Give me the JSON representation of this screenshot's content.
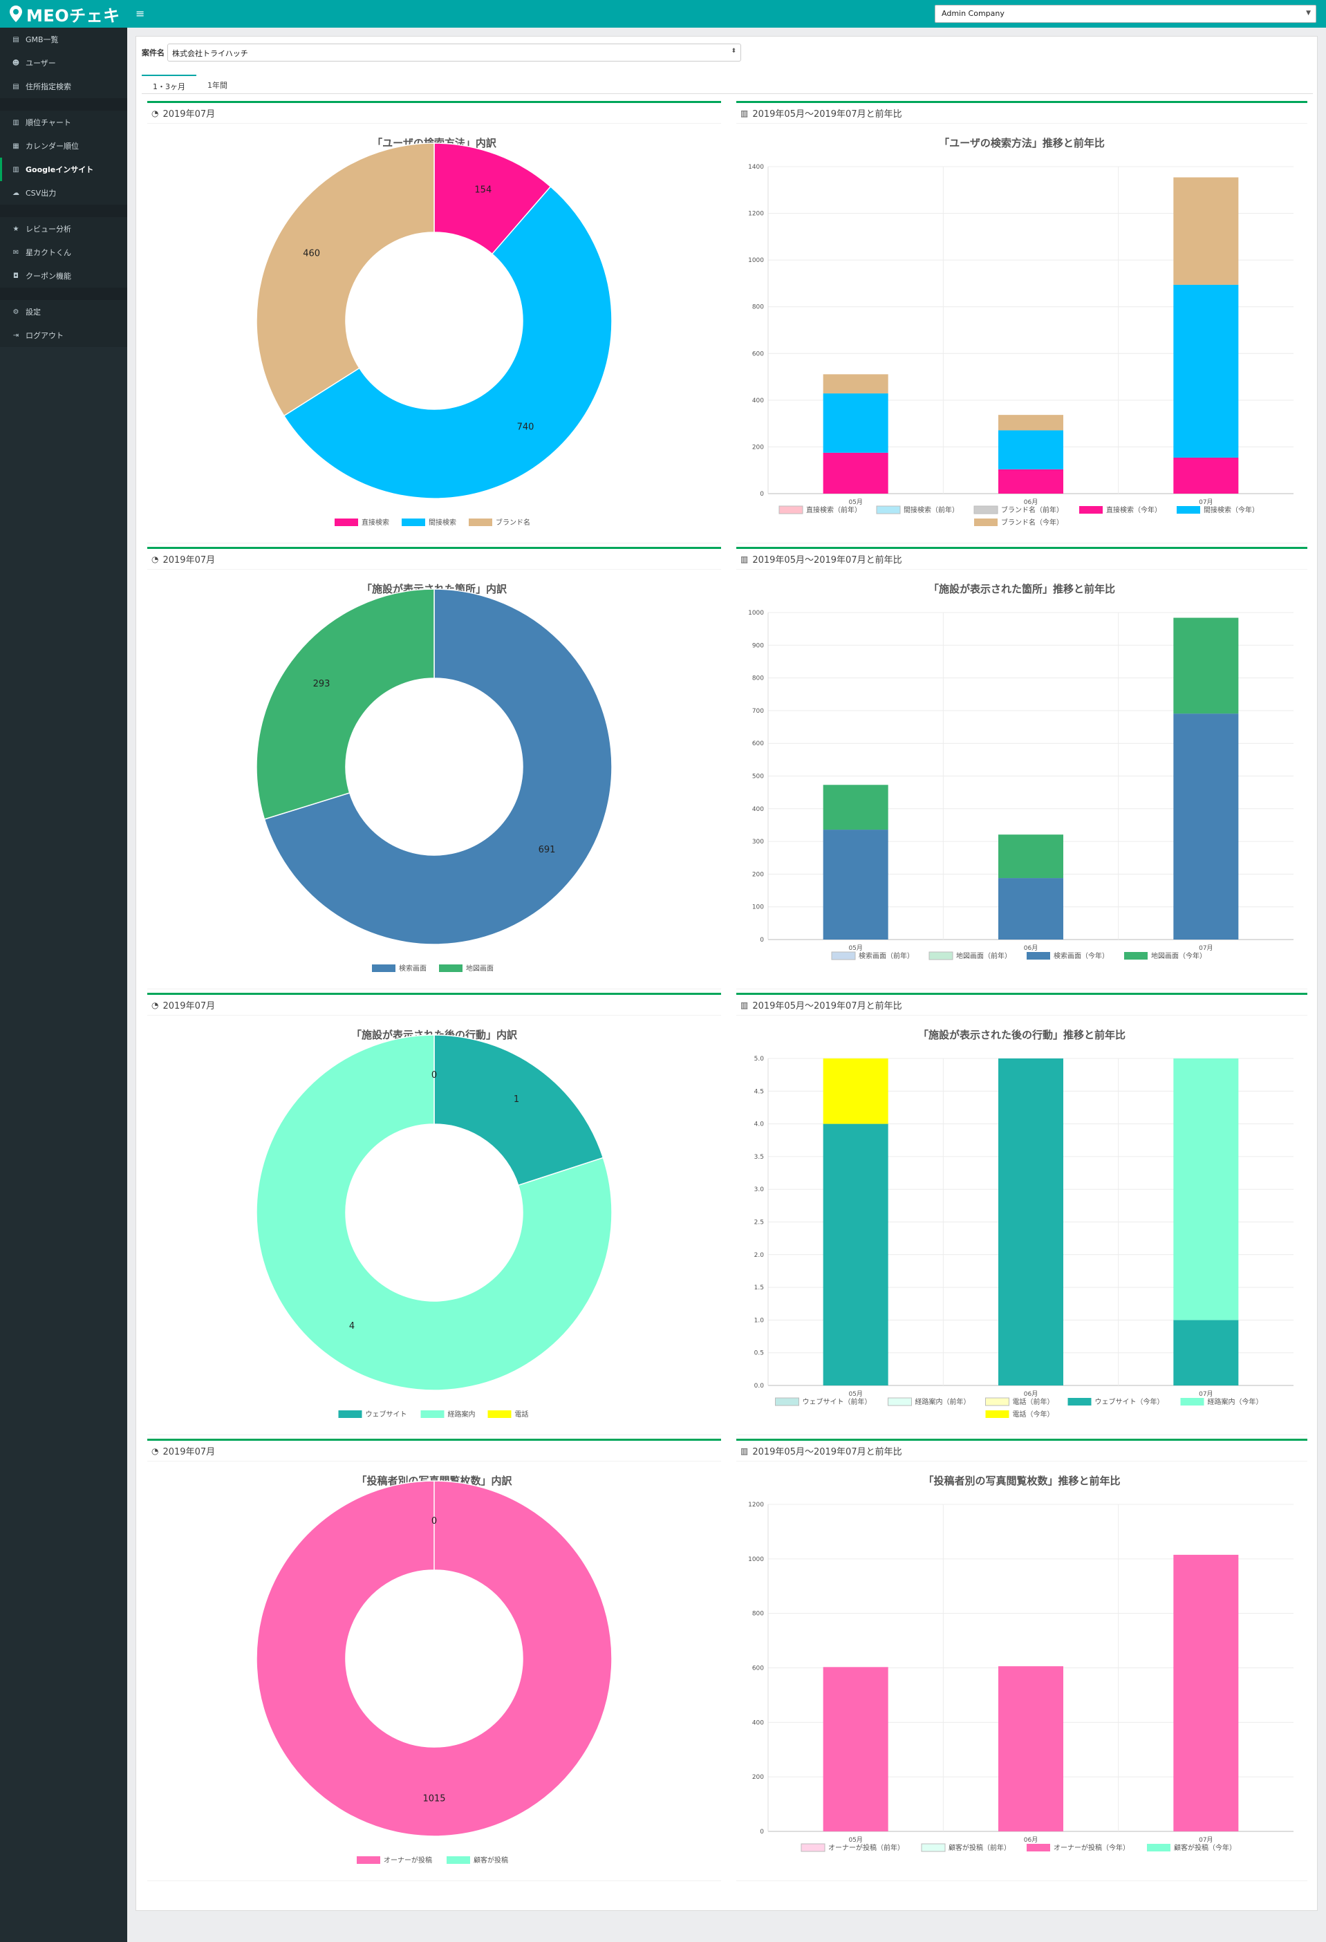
{
  "app": {
    "brand": "MEOチェキ"
  },
  "header": {
    "company_select": "Admin Company"
  },
  "sidebar": {
    "groups": [
      [
        {
          "icon": "list-icon",
          "label": "GMB一覧"
        },
        {
          "icon": "users-icon",
          "label": "ユーザー"
        },
        {
          "icon": "list-icon",
          "label": "住所指定検索"
        }
      ],
      [
        {
          "icon": "chart-icon",
          "label": "順位チャート"
        },
        {
          "icon": "calendar-icon",
          "label": "カレンダー順位"
        },
        {
          "icon": "chart-icon",
          "label": "Googleインサイト",
          "active": true
        },
        {
          "icon": "cloud-icon",
          "label": "CSV出力"
        }
      ],
      [
        {
          "icon": "star-icon",
          "label": "レビュー分析"
        },
        {
          "icon": "mail-icon",
          "label": "星カクトくん"
        },
        {
          "icon": "gift-icon",
          "label": "クーポン機能"
        }
      ],
      [
        {
          "icon": "gear-icon",
          "label": "設定"
        },
        {
          "icon": "logout-icon",
          "label": "ログアウト"
        }
      ]
    ]
  },
  "filters": {
    "case_label": "案件名",
    "case_value": "株式会社トライハッチ"
  },
  "tabs": [
    "1・3ヶ月",
    "1年間"
  ],
  "sections": [
    {
      "left_head": "2019年07月",
      "right_head": "2019年05月〜2019年07月と前年比",
      "donut_title": "「ユーザの検索方法」内訳",
      "bar_title": "「ユーザの検索方法」推移と前年比"
    },
    {
      "left_head": "2019年07月",
      "right_head": "2019年05月〜2019年07月と前年比",
      "donut_title": "「施設が表示された箇所」内訳",
      "bar_title": "「施設が表示された箇所」推移と前年比"
    },
    {
      "left_head": "2019年07月",
      "right_head": "2019年05月〜2019年07月と前年比",
      "donut_title": "「施設が表示された後の行動」内訳",
      "bar_title": "「施設が表示された後の行動」推移と前年比"
    },
    {
      "left_head": "2019年07月",
      "right_head": "2019年05月〜2019年07月と前年比",
      "donut_title": "「投稿者別の写真閲覧枚数」内訳",
      "bar_title": "「投稿者別の写真閲覧枚数」推移と前年比"
    }
  ],
  "colors": {
    "pink": "#ff1493",
    "sky": "#00bfff",
    "tan": "#deb887",
    "steel": "#4682b4",
    "green": "#3cb371",
    "teal": "#20b2aa",
    "aqua": "#7fffd4",
    "yellow": "#ffff00",
    "hotpink": "#ff69b4"
  },
  "chart_data": [
    {
      "type": "pie",
      "title": "「ユーザの検索方法」内訳",
      "labels": [
        "直接検索",
        "間接検索",
        "ブランド名"
      ],
      "values": [
        154,
        740,
        460
      ],
      "colors": [
        "#ff1493",
        "#00bfff",
        "#deb887"
      ]
    },
    {
      "type": "bar",
      "stacked": true,
      "title": "「ユーザの検索方法」推移と前年比",
      "categories": [
        "05月",
        "06月",
        "07月"
      ],
      "ylim": [
        0,
        1400
      ],
      "ytick_step": 200,
      "ytick_decimals": 0,
      "series": [
        {
          "name": "直接検索（前年）",
          "values": [
            0,
            0,
            0
          ],
          "color": "#ffc0cb",
          "hollow": true
        },
        {
          "name": "間接検索（前年）",
          "values": [
            0,
            0,
            0
          ],
          "color": "#b0e8f8",
          "hollow": true
        },
        {
          "name": "ブランド名（前年）",
          "values": [
            0,
            0,
            0
          ],
          "color": "#cccccc",
          "hollow": true
        },
        {
          "name": "直接検索（今年）",
          "values": [
            175,
            104,
            154
          ],
          "color": "#ff1493"
        },
        {
          "name": "間接検索（今年）",
          "values": [
            254,
            167,
            740
          ],
          "color": "#00bfff"
        },
        {
          "name": "ブランド名（今年）",
          "values": [
            82,
            66,
            460
          ],
          "color": "#deb887"
        }
      ]
    },
    {
      "type": "pie",
      "title": "「施設が表示された箇所」内訳",
      "labels": [
        "検索画面",
        "地図画面"
      ],
      "values": [
        691,
        293
      ],
      "colors": [
        "#4682b4",
        "#3cb371"
      ]
    },
    {
      "type": "bar",
      "stacked": true,
      "title": "「施設が表示された箇所」推移と前年比",
      "categories": [
        "05月",
        "06月",
        "07月"
      ],
      "ylim": [
        0,
        1000
      ],
      "ytick_step": 100,
      "ytick_decimals": 0,
      "series": [
        {
          "name": "検索画面（前年）",
          "values": [
            0,
            0,
            0
          ],
          "color": "#c6d9ee",
          "hollow": true
        },
        {
          "name": "地図画面（前年）",
          "values": [
            0,
            0,
            0
          ],
          "color": "#c4ebd5",
          "hollow": true
        },
        {
          "name": "検索画面（今年）",
          "values": [
            336,
            188,
            691
          ],
          "color": "#4682b4"
        },
        {
          "name": "地図画面（今年）",
          "values": [
            137,
            133,
            293
          ],
          "color": "#3cb371"
        }
      ]
    },
    {
      "type": "pie",
      "title": "「施設が表示された後の行動」内訳",
      "labels": [
        "ウェブサイト",
        "経路案内",
        "電話"
      ],
      "values": [
        1,
        4,
        0
      ],
      "colors": [
        "#20b2aa",
        "#7fffd4",
        "#ffff00"
      ]
    },
    {
      "type": "bar",
      "stacked": true,
      "title": "「施設が表示された後の行動」推移と前年比",
      "categories": [
        "05月",
        "06月",
        "07月"
      ],
      "ylim": [
        0,
        5
      ],
      "ytick_step": 0.5,
      "ytick_decimals": 1,
      "series": [
        {
          "name": "ウェブサイト（前年）",
          "values": [
            0,
            0,
            0
          ],
          "color": "#bfe9e6",
          "hollow": true
        },
        {
          "name": "経路案内（前年）",
          "values": [
            0,
            0,
            0
          ],
          "color": "#dffff4",
          "hollow": true
        },
        {
          "name": "電話（前年）",
          "values": [
            0,
            0,
            0
          ],
          "color": "#ffffc0",
          "hollow": true
        },
        {
          "name": "ウェブサイト（今年）",
          "values": [
            4,
            5,
            1
          ],
          "color": "#20b2aa"
        },
        {
          "name": "経路案内（今年）",
          "values": [
            0,
            0,
            4
          ],
          "color": "#7fffd4"
        },
        {
          "name": "電話（今年）",
          "values": [
            1,
            0,
            0
          ],
          "color": "#ffff00"
        }
      ]
    },
    {
      "type": "pie",
      "title": "「投稿者別の写真閲覧枚数」内訳",
      "labels": [
        "オーナーが投稿",
        "顧客が投稿"
      ],
      "values": [
        1015,
        0
      ],
      "colors": [
        "#ff69b4",
        "#7fffd4"
      ]
    },
    {
      "type": "bar",
      "stacked": true,
      "title": "「投稿者別の写真閲覧枚数」推移と前年比",
      "categories": [
        "05月",
        "06月",
        "07月"
      ],
      "ylim": [
        0,
        1200
      ],
      "ytick_step": 200,
      "ytick_decimals": 0,
      "series": [
        {
          "name": "オーナーが投稿（前年）",
          "values": [
            0,
            0,
            0
          ],
          "color": "#ffd3e8",
          "hollow": true
        },
        {
          "name": "顧客が投稿（前年）",
          "values": [
            0,
            0,
            0
          ],
          "color": "#dffff4",
          "hollow": true
        },
        {
          "name": "オーナーが投稿（今年）",
          "values": [
            603,
            606,
            1015
          ],
          "color": "#ff69b4"
        },
        {
          "name": "顧客が投稿（今年）",
          "values": [
            0,
            0,
            0
          ],
          "color": "#7fffd4"
        }
      ]
    }
  ]
}
